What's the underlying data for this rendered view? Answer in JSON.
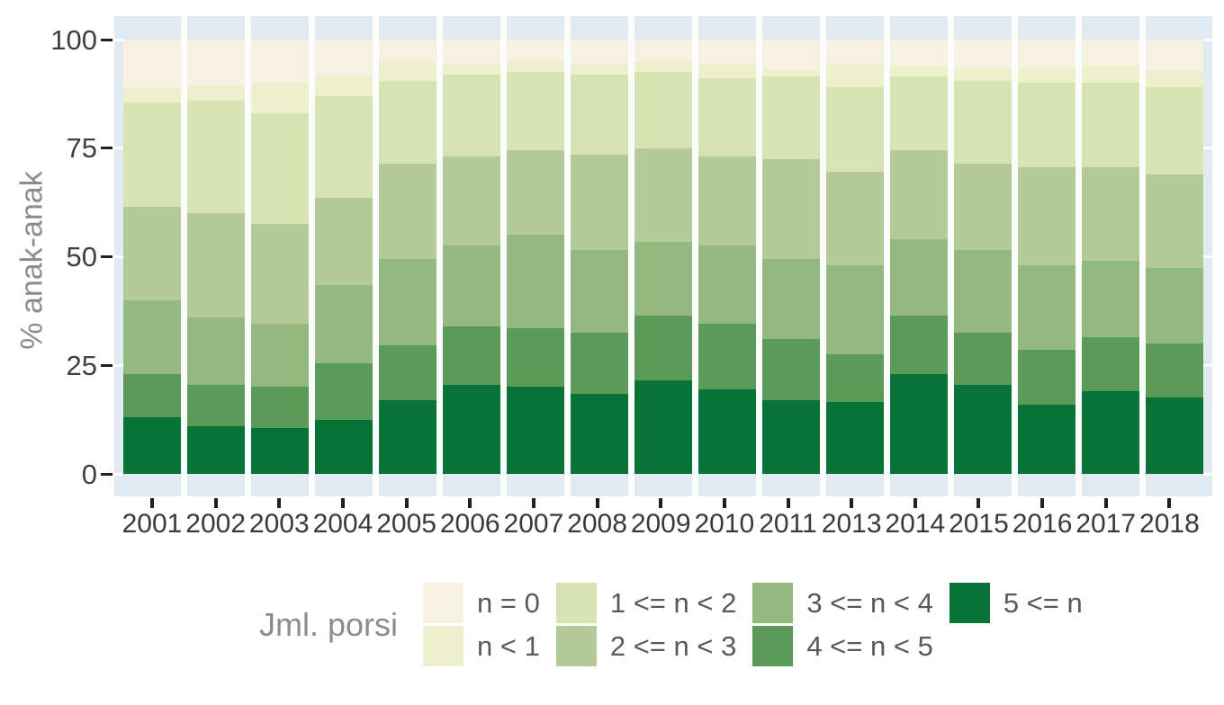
{
  "y_axis": {
    "title": "% anak-anak",
    "ticks": [
      "100",
      "75",
      "50",
      "25",
      "0"
    ]
  },
  "x_axis": {
    "categories": [
      "2001",
      "2002",
      "2003",
      "2004",
      "2005",
      "2006",
      "2007",
      "2008",
      "2009",
      "2010",
      "2011",
      "2013",
      "2014",
      "2015",
      "2016",
      "2017",
      "2018"
    ]
  },
  "legend": {
    "title": "Jml. porsi",
    "items": [
      {
        "label": "n = 0",
        "color": "#f6f1e1"
      },
      {
        "label": "n < 1",
        "color": "#eef0cd"
      },
      {
        "label": "1 <= n < 2",
        "color": "#d8e3b2"
      },
      {
        "label": "2 <= n < 3",
        "color": "#b4cb97"
      },
      {
        "label": "3 <= n < 4",
        "color": "#93b97f"
      },
      {
        "label": "4 <= n < 5",
        "color": "#5c9a58"
      },
      {
        "label": "5 <= n",
        "color": "#087336"
      }
    ],
    "columns": [
      [
        0,
        1
      ],
      [
        2,
        3
      ],
      [
        4,
        5
      ],
      [
        6
      ]
    ]
  },
  "chart_data": {
    "type": "bar",
    "stacked": true,
    "normalized_percent": true,
    "title": "",
    "xlabel": "",
    "ylabel": "% anak-anak",
    "ylim": [
      0,
      100
    ],
    "grid": true,
    "legend_position": "bottom",
    "stack_order_bottom_to_top": [
      "5 <= n",
      "4 <= n < 5",
      "3 <= n < 4",
      "2 <= n < 3",
      "1 <= n < 2",
      "n < 1",
      "n = 0"
    ],
    "categories": [
      "2001",
      "2002",
      "2003",
      "2004",
      "2005",
      "2006",
      "2007",
      "2008",
      "2009",
      "2010",
      "2011",
      "2013",
      "2014",
      "2015",
      "2016",
      "2017",
      "2018"
    ],
    "series": [
      {
        "name": "n = 0",
        "color": "#f6f1e1",
        "values": [
          11,
          10.5,
          10,
          8.5,
          5,
          5.5,
          5,
          5.5,
          5,
          5.5,
          7,
          5.5,
          6,
          6.5,
          6.5,
          6,
          7
        ]
      },
      {
        "name": "n < 1",
        "color": "#eef0cd",
        "values": [
          3.5,
          3.5,
          7,
          4.5,
          4.5,
          2.5,
          2.5,
          2.5,
          2.5,
          3.5,
          1.5,
          5.5,
          2.5,
          3,
          3.5,
          4,
          4
        ]
      },
      {
        "name": "1 <= n < 2",
        "color": "#d8e3b2",
        "values": [
          24,
          26,
          25.5,
          23.5,
          19,
          19,
          18,
          18.5,
          17.5,
          18,
          19,
          19.5,
          17,
          19,
          19.5,
          19.5,
          20
        ]
      },
      {
        "name": "2 <= n < 3",
        "color": "#b4cb97",
        "values": [
          21.5,
          24,
          23,
          20,
          22,
          20.5,
          19.5,
          22,
          21.5,
          20.5,
          23,
          21.5,
          20.5,
          20,
          22.5,
          21.5,
          21.5
        ]
      },
      {
        "name": "3 <= n < 4",
        "color": "#93b97f",
        "values": [
          17,
          15.5,
          14.5,
          18,
          20,
          18.5,
          21.5,
          19,
          17,
          18,
          18.5,
          20.5,
          17.5,
          19,
          19.5,
          17.5,
          17.5
        ]
      },
      {
        "name": "4 <= n < 5",
        "color": "#5c9a58",
        "values": [
          10,
          9.5,
          9.5,
          13,
          12.5,
          13.5,
          13.5,
          14,
          15,
          15,
          14,
          11,
          13.5,
          12,
          12.5,
          12.5,
          12.5
        ]
      },
      {
        "name": "5 <= n",
        "color": "#087336",
        "values": [
          13,
          11,
          10.5,
          12.5,
          17,
          20.5,
          20,
          18.5,
          21.5,
          19.5,
          17,
          16.5,
          23,
          20.5,
          16,
          19,
          17.5
        ]
      }
    ]
  },
  "colors": {
    "panel_background": "#e1eaf0",
    "gridline": "#ffffff",
    "bar_gap": "#fbfdfc",
    "tick_mark": "#1f1f1f",
    "tick_label": "#3f3f3f",
    "axis_title": "#8c8c8c",
    "legend_text": "#595959"
  }
}
